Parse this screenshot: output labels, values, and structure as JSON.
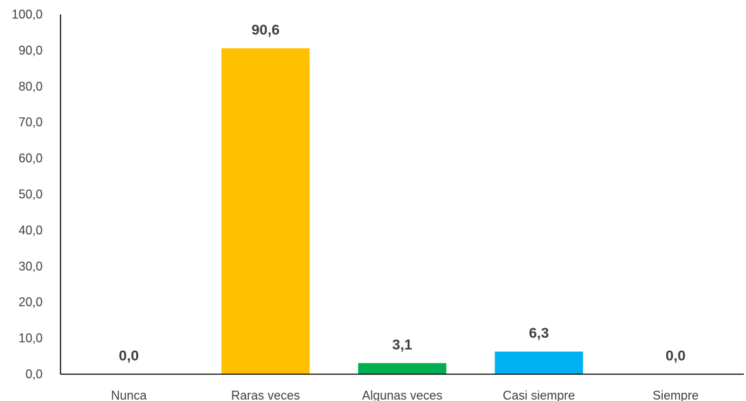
{
  "chart_data": {
    "type": "bar",
    "categories": [
      "Nunca",
      "Raras veces",
      "Algunas veces",
      "Casi siempre",
      "Siempre"
    ],
    "values": [
      0.0,
      90.6,
      3.1,
      6.3,
      0.0
    ],
    "data_labels": [
      "0,0",
      "90,6",
      "3,1",
      "6,3",
      "0,0"
    ],
    "colors": [
      "#4472C4",
      "#FFC000",
      "#00B050",
      "#00B0F0",
      "#7F7F7F"
    ],
    "y_ticks": [
      "0,0",
      "10,0",
      "20,0",
      "30,0",
      "40,0",
      "50,0",
      "60,0",
      "70,0",
      "80,0",
      "90,0",
      "100,0"
    ],
    "ylim": [
      0,
      100
    ],
    "grid": false,
    "legend": false,
    "title": "",
    "xlabel": "",
    "ylabel": ""
  }
}
